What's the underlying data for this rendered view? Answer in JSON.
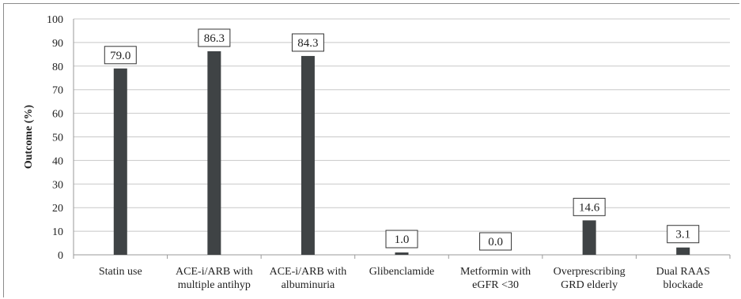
{
  "caption": "",
  "colors": {
    "bar": "#3f4345",
    "grid": "#c8c8c8",
    "axis": "#9a9a9a",
    "label_box": "#333333"
  },
  "chart_data": {
    "type": "bar",
    "title": "",
    "xlabel": "",
    "ylabel": "Outcome (%)",
    "ylim": [
      0,
      100
    ],
    "yticks": [
      0,
      10,
      20,
      30,
      40,
      50,
      60,
      70,
      80,
      90,
      100
    ],
    "grid": true,
    "categories": [
      [
        "Statin use"
      ],
      [
        "ACE-i/ARB with",
        "multiple antihyp"
      ],
      [
        "ACE-i/ARB with",
        "albuminuria"
      ],
      [
        "Glibenclamide"
      ],
      [
        "Metformin with",
        "eGFR <30"
      ],
      [
        "Overprescribing",
        "GRD elderly"
      ],
      [
        "Dual RAAS",
        "blockade"
      ]
    ],
    "values": [
      79.0,
      86.3,
      84.3,
      1.0,
      0.0,
      14.6,
      3.1
    ],
    "data_labels": [
      "79.0",
      "86.3",
      "84.3",
      "1.0",
      "0.0",
      "14.6",
      "3.1"
    ]
  }
}
